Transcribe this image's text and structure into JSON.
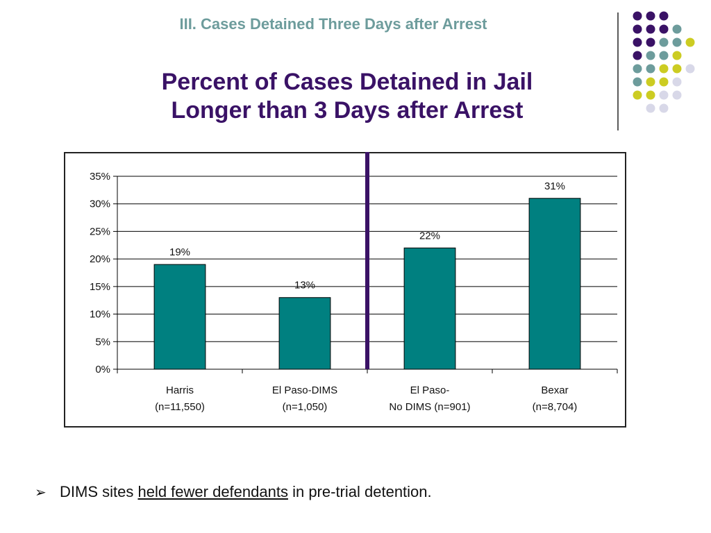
{
  "slide": {
    "section_heading": "III.  Cases Detained Three Days after Arrest",
    "title_lines": [
      "Percent of Cases Detained in Jail",
      "Longer than 3 Days after Arrest"
    ]
  },
  "decor": {
    "dot_rows": [
      [
        "#3a1266",
        "#3a1266",
        "#3a1266"
      ],
      [
        "#3a1266",
        "#3a1266",
        "#3a1266",
        "#6d9c9c"
      ],
      [
        "#3a1266",
        "#3a1266",
        "#6d9c9c",
        "#6d9c9c",
        "#cccc22"
      ],
      [
        "#3a1266",
        "#6d9c9c",
        "#6d9c9c",
        "#cccc22"
      ],
      [
        "#6d9c9c",
        "#6d9c9c",
        "#cccc22",
        "#cccc22",
        "#d8d8e8"
      ],
      [
        "#6d9c9c",
        "#cccc22",
        "#cccc22",
        "#d8d8e8"
      ],
      [
        "#cccc22",
        "#cccc22",
        "#d8d8e8",
        "#d8d8e8"
      ],
      [
        "#d8d8e8",
        "#d8d8e8"
      ]
    ]
  },
  "chart_data": {
    "type": "bar",
    "categories": [
      [
        "Harris",
        "(n=11,550)"
      ],
      [
        "El Paso-DIMS",
        "(n=1,050)"
      ],
      [
        "El Paso-",
        "No DIMS (n=901)"
      ],
      [
        "Bexar",
        "(n=8,704)"
      ]
    ],
    "values": [
      19,
      13,
      22,
      31
    ],
    "data_labels": [
      "19%",
      "13%",
      "22%",
      "31%"
    ],
    "ylim": [
      0,
      35
    ],
    "yticks": [
      "0%",
      "5%",
      "10%",
      "15%",
      "20%",
      "25%",
      "30%",
      "35%"
    ],
    "grid": true,
    "bar_color": "#008080",
    "divider_color": "#3a1266",
    "divider_after_category": 2
  },
  "bullets": [
    {
      "marker": "➢",
      "parts": [
        {
          "text": "DIMS sites ",
          "underline": false
        },
        {
          "text": "held fewer defendants",
          "underline": true
        },
        {
          "text": " in pre-trial detention.",
          "underline": false
        }
      ]
    }
  ]
}
